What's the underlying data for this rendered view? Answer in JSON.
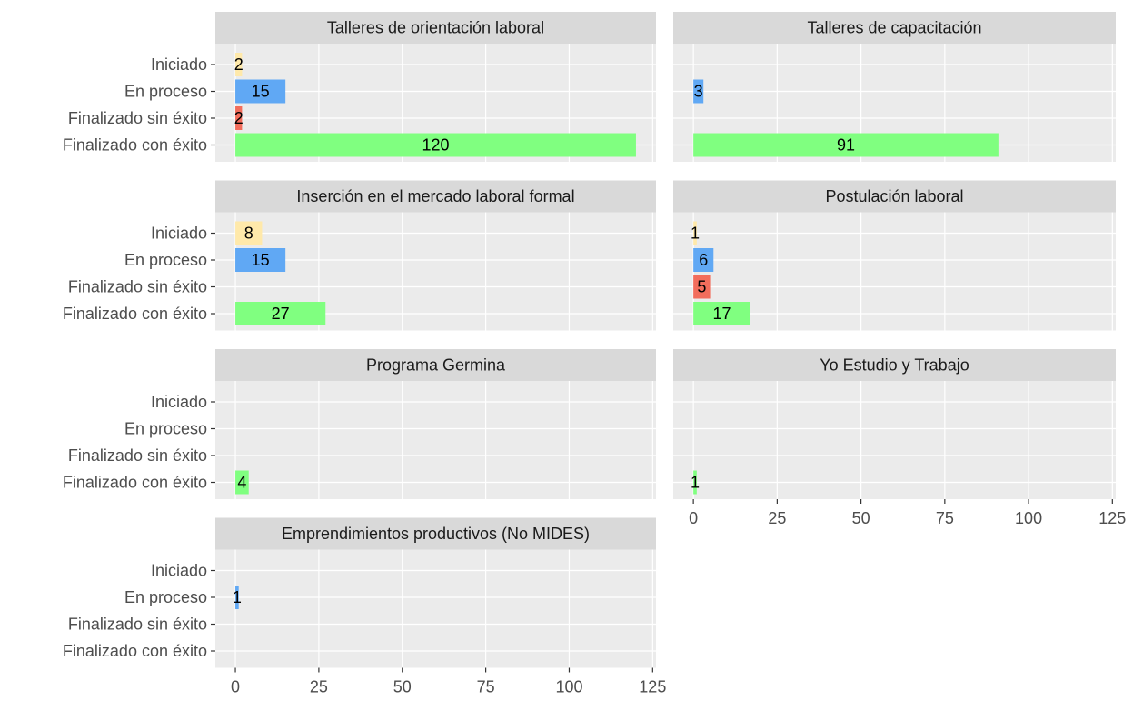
{
  "chart_data": [
    {
      "type": "bar",
      "title": "Talleres de orientación laboral",
      "categories": [
        "Iniciado",
        "En proceso",
        "Finalizado sin éxito",
        "Finalizado con éxito"
      ],
      "values": [
        2,
        15,
        2,
        120
      ],
      "colors": [
        "#FFE9AA",
        "#60A8F4",
        "#F26D5C",
        "#80FF80"
      ],
      "xlim": [
        -6,
        126
      ],
      "xticks": [
        0,
        25,
        50,
        75,
        100,
        125
      ],
      "grid": true
    },
    {
      "type": "bar",
      "title": "Talleres de capacitación",
      "values": [
        null,
        3,
        null,
        91
      ],
      "colors": [
        "#FFE9AA",
        "#60A8F4",
        "#F26D5C",
        "#80FF80"
      ],
      "xlim": [
        -6,
        126
      ],
      "xticks": [
        0,
        25,
        50,
        75,
        100,
        125
      ],
      "grid": true
    },
    {
      "type": "bar",
      "title": "Inserción en el mercado laboral formal",
      "categories": [
        "Iniciado",
        "En proceso",
        "Finalizado sin éxito",
        "Finalizado con éxito"
      ],
      "values": [
        8,
        15,
        null,
        27
      ],
      "colors": [
        "#FFE9AA",
        "#60A8F4",
        "#F26D5C",
        "#80FF80"
      ],
      "xlim": [
        -6,
        126
      ],
      "xticks": [
        0,
        25,
        50,
        75,
        100,
        125
      ],
      "grid": true
    },
    {
      "type": "bar",
      "title": "Postulación laboral",
      "values": [
        1,
        6,
        5,
        17
      ],
      "colors": [
        "#FFE9AA",
        "#60A8F4",
        "#F26D5C",
        "#80FF80"
      ],
      "xlim": [
        -6,
        126
      ],
      "xticks": [
        0,
        25,
        50,
        75,
        100,
        125
      ],
      "grid": true
    },
    {
      "type": "bar",
      "title": "Programa Germina",
      "categories": [
        "Iniciado",
        "En proceso",
        "Finalizado sin éxito",
        "Finalizado con éxito"
      ],
      "values": [
        null,
        null,
        null,
        4
      ],
      "colors": [
        "#FFE9AA",
        "#60A8F4",
        "#F26D5C",
        "#80FF80"
      ],
      "xlim": [
        -6,
        126
      ],
      "xticks": [
        0,
        25,
        50,
        75,
        100,
        125
      ],
      "grid": true
    },
    {
      "type": "bar",
      "title": "Yo Estudio y Trabajo",
      "values": [
        null,
        null,
        null,
        1
      ],
      "colors": [
        "#FFE9AA",
        "#60A8F4",
        "#F26D5C",
        "#80FF80"
      ],
      "xlim": [
        -6,
        126
      ],
      "xticks": [
        0,
        25,
        50,
        75,
        100,
        125
      ],
      "grid": true
    },
    {
      "type": "bar",
      "title": "Emprendimientos productivos (No MIDES)",
      "categories": [
        "Iniciado",
        "En proceso",
        "Finalizado sin éxito",
        "Finalizado con éxito"
      ],
      "values": [
        null,
        1,
        null,
        null
      ],
      "colors": [
        "#FFE9AA",
        "#60A8F4",
        "#F26D5C",
        "#80FF80"
      ],
      "xlim": [
        -6,
        126
      ],
      "xticks": [
        0,
        25,
        50,
        75,
        100,
        125
      ],
      "grid": true
    }
  ]
}
